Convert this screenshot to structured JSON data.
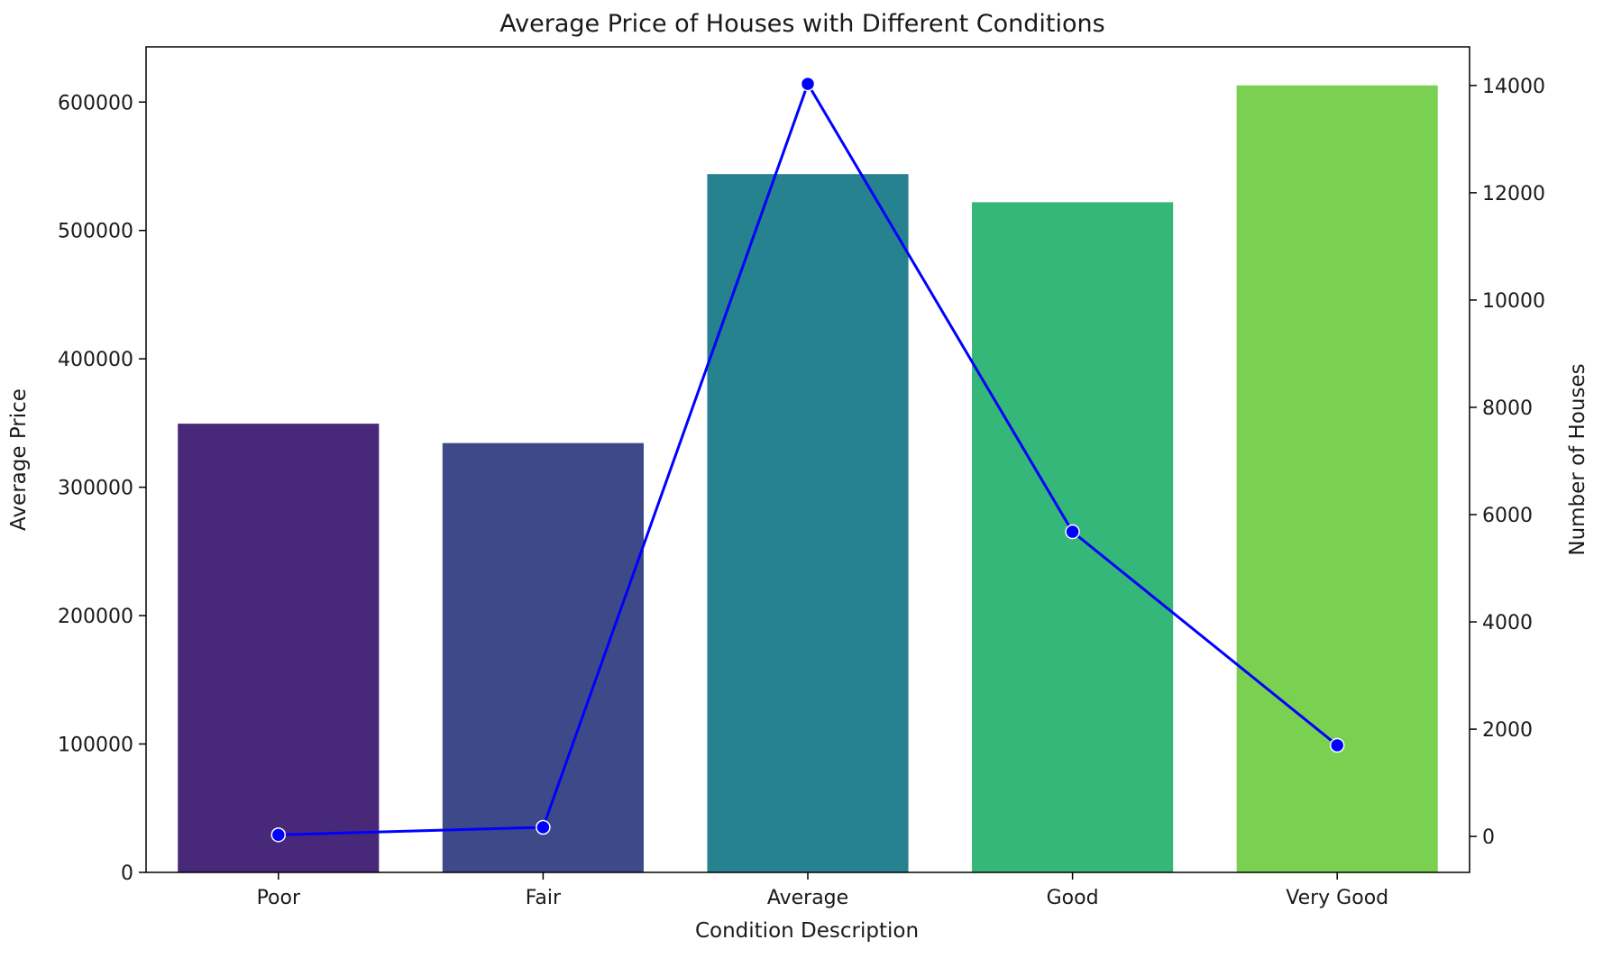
{
  "chart_data": {
    "type": "bar",
    "title": "Average Price of Houses with Different Conditions",
    "xlabel": "Condition Description",
    "ylabel": "Average Price",
    "y2label": "Number of Houses",
    "categories": [
      "Poor",
      "Fair",
      "Average",
      "Good",
      "Very Good"
    ],
    "bar_series": {
      "values": [
        349500,
        334400,
        543900,
        522000,
        613000
      ],
      "colors": [
        "#482878",
        "#3e4989",
        "#26828e",
        "#35b779",
        "#7ad151"
      ]
    },
    "line_series": {
      "values": [
        30,
        170,
        14030,
        5680,
        1700
      ],
      "color": "#0000ff",
      "axis": "right"
    },
    "ylim": [
      0,
      643000
    ],
    "y2lim": [
      -670,
      14720
    ],
    "yticks": [
      "0",
      "100000",
      "200000",
      "300000",
      "400000",
      "500000",
      "600000"
    ],
    "yticks_values": [
      0,
      100000,
      200000,
      300000,
      400000,
      500000,
      600000
    ],
    "y2ticks": [
      "0",
      "2000",
      "4000",
      "6000",
      "8000",
      "10000",
      "12000",
      "14000"
    ],
    "y2ticks_values": [
      0,
      2000,
      4000,
      6000,
      8000,
      10000,
      12000,
      14000
    ],
    "grid": false,
    "legend": "none"
  }
}
